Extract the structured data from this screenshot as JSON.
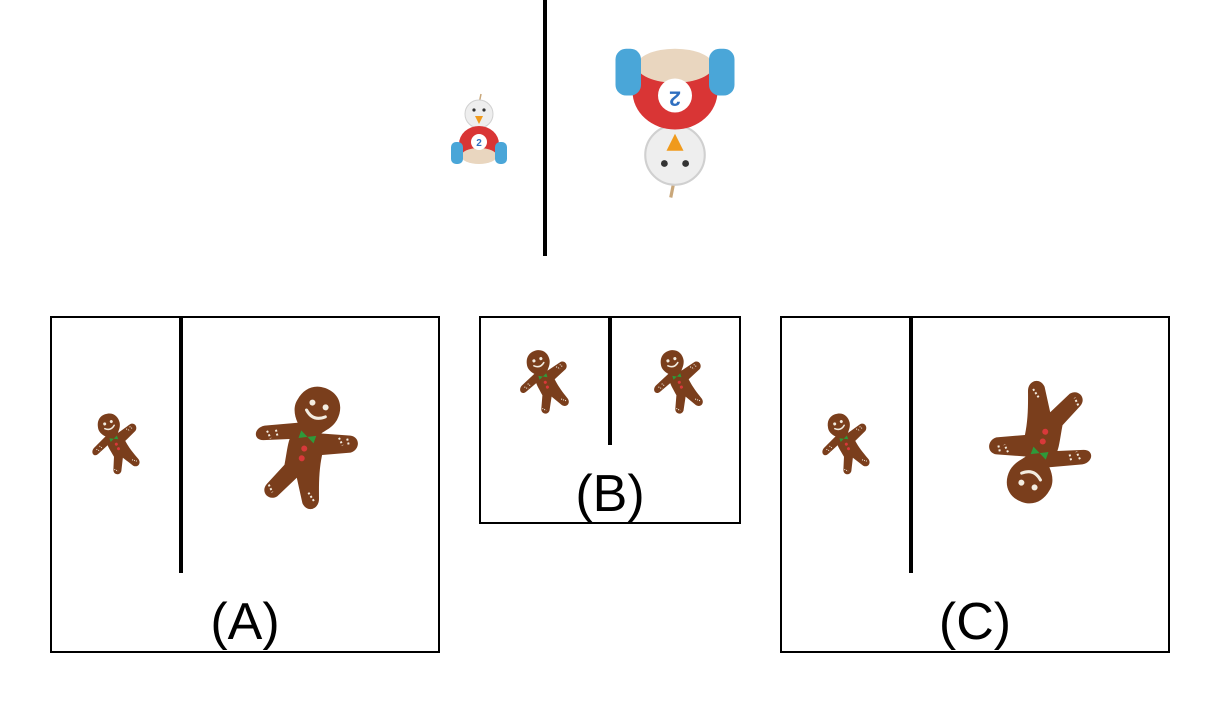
{
  "example": {
    "small_figure": "toy-car-small",
    "large_figure": "toy-car-large-rotated",
    "small_number": "2",
    "large_number": "2"
  },
  "options": [
    {
      "id": "A",
      "label": "(A)"
    },
    {
      "id": "B",
      "label": "(B)"
    },
    {
      "id": "C",
      "label": "(C)"
    }
  ],
  "colors": {
    "gingerbread": "#7a3e1c",
    "icing": "#f3ece0",
    "bowtie": "#2e9a3a",
    "button": "#d8393a",
    "toy_red": "#d93535",
    "toy_blue": "#4aa6d8",
    "toy_white": "#eeeeee",
    "toy_beak": "#f09a1c"
  }
}
